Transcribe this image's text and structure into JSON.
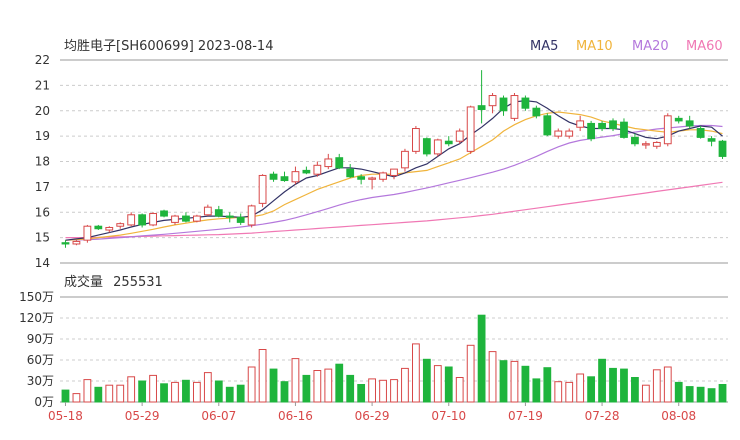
{
  "chart_data": {
    "type": "candlestick",
    "title": "均胜电子[SH600699] 2023-08-14",
    "legend": {
      "items": [
        {
          "name": "MA5",
          "color": "#333366"
        },
        {
          "name": "MA10",
          "color": "#f0b43c"
        },
        {
          "name": "MA20",
          "color": "#b478dc"
        },
        {
          "name": "MA60",
          "color": "#f078b4"
        }
      ],
      "placement": "top-right"
    },
    "colors": {
      "up": "#d84848",
      "down": "#1eb43c"
    },
    "price_axis": {
      "ylim": [
        14,
        22
      ],
      "ticks": [
        "22",
        "21",
        "20",
        "19",
        "18",
        "17",
        "16",
        "15",
        "14"
      ]
    },
    "volume_panel": {
      "title": "成交量",
      "value": "255531",
      "ylim": [
        0,
        150
      ],
      "ticks": [
        "150万",
        "120万",
        "90万",
        "60万",
        "30万",
        "0万"
      ]
    },
    "x_tick_labels": [
      "05-18",
      "05-29",
      "06-07",
      "06-16",
      "06-29",
      "07-10",
      "07-19",
      "07-28",
      "08-08"
    ],
    "x_tick_index": [
      0,
      7,
      14,
      21,
      28,
      35,
      42,
      49,
      56
    ],
    "ohlc": [
      [
        14.8,
        14.9,
        14.6,
        14.75
      ],
      [
        14.75,
        14.9,
        14.7,
        14.85
      ],
      [
        14.9,
        15.5,
        14.8,
        15.45
      ],
      [
        15.45,
        15.5,
        15.3,
        15.35
      ],
      [
        15.3,
        15.45,
        15.2,
        15.4
      ],
      [
        15.45,
        15.6,
        15.35,
        15.55
      ],
      [
        15.5,
        16.0,
        15.45,
        15.9
      ],
      [
        15.9,
        15.95,
        15.4,
        15.5
      ],
      [
        15.5,
        16.0,
        15.45,
        15.95
      ],
      [
        16.05,
        16.1,
        15.8,
        15.85
      ],
      [
        15.6,
        15.9,
        15.5,
        15.85
      ],
      [
        15.85,
        16.0,
        15.6,
        15.65
      ],
      [
        15.65,
        15.9,
        15.6,
        15.85
      ],
      [
        15.9,
        16.3,
        15.85,
        16.2
      ],
      [
        16.1,
        16.25,
        15.8,
        15.85
      ],
      [
        15.85,
        16.0,
        15.6,
        15.8
      ],
      [
        15.8,
        15.95,
        15.5,
        15.6
      ],
      [
        15.5,
        16.3,
        15.4,
        16.25
      ],
      [
        16.35,
        17.5,
        16.2,
        17.45
      ],
      [
        17.5,
        17.6,
        17.2,
        17.3
      ],
      [
        17.4,
        17.6,
        17.2,
        17.25
      ],
      [
        17.2,
        17.8,
        17.1,
        17.6
      ],
      [
        17.65,
        17.8,
        17.5,
        17.55
      ],
      [
        17.5,
        18.0,
        17.4,
        17.85
      ],
      [
        17.8,
        18.3,
        17.7,
        18.1
      ],
      [
        18.15,
        18.3,
        17.7,
        17.75
      ],
      [
        17.7,
        17.9,
        17.35,
        17.4
      ],
      [
        17.4,
        17.5,
        17.1,
        17.3
      ],
      [
        17.3,
        17.4,
        16.9,
        17.35
      ],
      [
        17.3,
        17.6,
        17.2,
        17.55
      ],
      [
        17.45,
        17.7,
        17.3,
        17.7
      ],
      [
        17.75,
        18.5,
        17.6,
        18.4
      ],
      [
        18.4,
        19.4,
        18.3,
        19.3
      ],
      [
        18.9,
        18.95,
        18.2,
        18.3
      ],
      [
        18.3,
        18.9,
        18.2,
        18.85
      ],
      [
        18.8,
        19.0,
        18.6,
        18.7
      ],
      [
        18.8,
        19.3,
        18.7,
        19.2
      ],
      [
        18.4,
        20.2,
        18.3,
        20.15
      ],
      [
        20.2,
        21.6,
        19.5,
        20.05
      ],
      [
        20.2,
        20.7,
        19.9,
        20.6
      ],
      [
        20.5,
        20.6,
        19.8,
        20.0
      ],
      [
        19.7,
        20.7,
        19.6,
        20.6
      ],
      [
        20.5,
        20.6,
        20.0,
        20.1
      ],
      [
        20.1,
        20.2,
        19.7,
        19.8
      ],
      [
        19.8,
        19.9,
        19.0,
        19.05
      ],
      [
        19.0,
        19.3,
        18.9,
        19.2
      ],
      [
        19.0,
        19.3,
        18.9,
        19.2
      ],
      [
        19.35,
        19.8,
        19.2,
        19.6
      ],
      [
        19.5,
        19.6,
        18.8,
        18.9
      ],
      [
        19.5,
        19.6,
        19.2,
        19.3
      ],
      [
        19.6,
        19.7,
        19.2,
        19.3
      ],
      [
        19.55,
        19.7,
        18.9,
        18.95
      ],
      [
        18.95,
        19.1,
        18.6,
        18.7
      ],
      [
        18.65,
        18.8,
        18.5,
        18.7
      ],
      [
        18.6,
        18.8,
        18.5,
        18.75
      ],
      [
        18.7,
        19.9,
        18.6,
        19.8
      ],
      [
        19.7,
        19.8,
        19.5,
        19.6
      ],
      [
        19.6,
        19.8,
        19.3,
        19.4
      ],
      [
        19.3,
        19.4,
        18.9,
        18.95
      ],
      [
        18.9,
        19.0,
        18.6,
        18.8
      ],
      [
        18.8,
        18.85,
        18.1,
        18.2
      ]
    ],
    "volume": [
      17,
      12,
      32,
      21,
      24,
      24,
      36,
      30,
      38,
      26,
      28,
      31,
      28,
      42,
      30,
      21,
      24,
      50,
      75,
      47,
      29,
      62,
      38,
      45,
      47,
      54,
      38,
      25,
      33,
      31,
      32,
      48,
      83,
      61,
      52,
      50,
      35,
      81,
      124,
      72,
      59,
      58,
      51,
      33,
      49,
      29,
      28,
      40,
      36,
      61,
      48,
      47,
      35,
      24,
      46,
      50,
      28,
      22,
      21,
      19,
      25
    ],
    "ma5": [
      14.9,
      14.95,
      15.0,
      15.1,
      15.2,
      15.3,
      15.42,
      15.52,
      15.6,
      15.68,
      15.72,
      15.76,
      15.8,
      15.85,
      15.85,
      15.83,
      15.8,
      15.85,
      16.1,
      16.45,
      16.8,
      17.1,
      17.35,
      17.45,
      17.6,
      17.75,
      17.75,
      17.7,
      17.6,
      17.5,
      17.4,
      17.55,
      17.75,
      17.9,
      18.2,
      18.5,
      18.7,
      19.05,
      19.35,
      19.7,
      20.1,
      20.35,
      20.4,
      20.35,
      20.1,
      19.8,
      19.55,
      19.4,
      19.3,
      19.3,
      19.3,
      19.25,
      19.1,
      18.95,
      18.9,
      19.0,
      19.2,
      19.3,
      19.4,
      19.35,
      19.0
    ],
    "ma10": [
      14.9,
      14.92,
      14.95,
      15.0,
      15.05,
      15.1,
      15.17,
      15.25,
      15.33,
      15.42,
      15.5,
      15.57,
      15.64,
      15.7,
      15.74,
      15.77,
      15.8,
      15.82,
      15.9,
      16.05,
      16.3,
      16.5,
      16.7,
      16.9,
      17.05,
      17.2,
      17.35,
      17.45,
      17.5,
      17.5,
      17.5,
      17.55,
      17.6,
      17.65,
      17.8,
      17.95,
      18.1,
      18.35,
      18.6,
      18.85,
      19.2,
      19.45,
      19.65,
      19.8,
      19.9,
      19.95,
      19.9,
      19.85,
      19.75,
      19.6,
      19.5,
      19.4,
      19.3,
      19.25,
      19.2,
      19.15,
      19.2,
      19.25,
      19.25,
      19.2,
      19.1
    ],
    "ma20": [
      14.9,
      14.91,
      14.92,
      14.94,
      14.97,
      15.0,
      15.03,
      15.07,
      15.1,
      15.13,
      15.17,
      15.21,
      15.25,
      15.29,
      15.33,
      15.37,
      15.42,
      15.47,
      15.53,
      15.6,
      15.68,
      15.78,
      15.9,
      16.02,
      16.15,
      16.28,
      16.4,
      16.5,
      16.58,
      16.64,
      16.7,
      16.78,
      16.87,
      16.96,
      17.06,
      17.16,
      17.26,
      17.36,
      17.47,
      17.58,
      17.7,
      17.85,
      18.02,
      18.2,
      18.4,
      18.58,
      18.73,
      18.83,
      18.9,
      18.96,
      19.02,
      19.1,
      19.16,
      19.22,
      19.28,
      19.32,
      19.36,
      19.4,
      19.42,
      19.42,
      19.38
    ],
    "ma60": [
      15.0,
      15.0,
      15.0,
      15.01,
      15.02,
      15.03,
      15.04,
      15.05,
      15.06,
      15.07,
      15.08,
      15.09,
      15.1,
      15.11,
      15.12,
      15.14,
      15.16,
      15.18,
      15.21,
      15.24,
      15.27,
      15.3,
      15.33,
      15.36,
      15.39,
      15.42,
      15.45,
      15.48,
      15.51,
      15.54,
      15.57,
      15.6,
      15.63,
      15.66,
      15.7,
      15.74,
      15.78,
      15.82,
      15.87,
      15.92,
      15.98,
      16.04,
      16.1,
      16.16,
      16.22,
      16.28,
      16.34,
      16.4,
      16.46,
      16.52,
      16.58,
      16.64,
      16.7,
      16.76,
      16.82,
      16.88,
      16.94,
      17.0,
      17.06,
      17.12,
      17.18
    ]
  }
}
